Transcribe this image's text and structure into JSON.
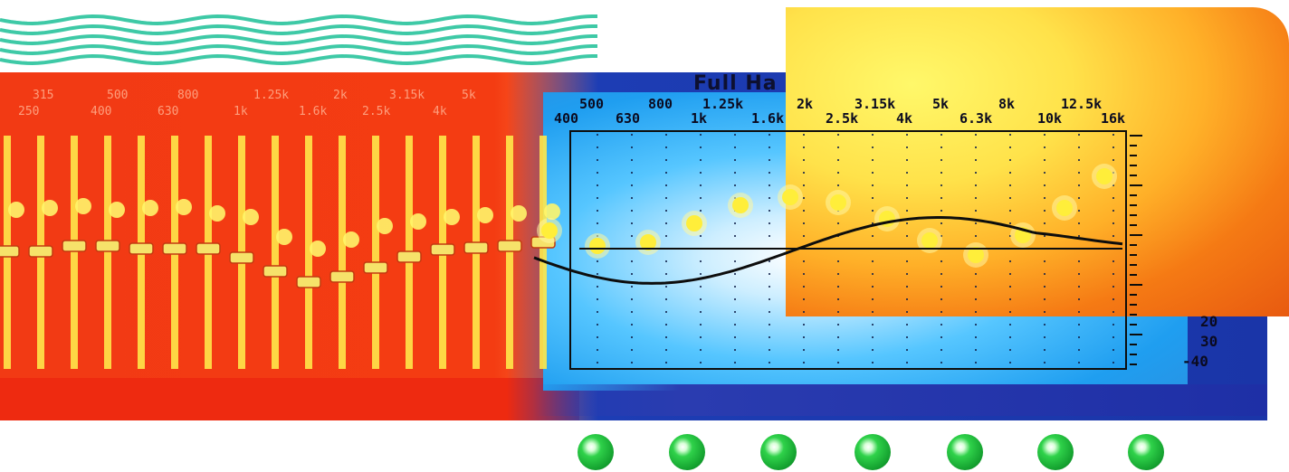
{
  "display": {
    "title": "Full Ha",
    "freq_top": [
      "500",
      "800",
      "1.25k",
      "2k",
      "3.15k",
      "5k",
      "8k",
      "12.5k"
    ],
    "freq_bottom": [
      "400",
      "630",
      "1k",
      "1.6k",
      "2.5k",
      "4k",
      "6.3k",
      "10k",
      "16k"
    ],
    "db_labels": [
      "20",
      "30",
      "-40"
    ]
  },
  "red_panel": {
    "labels_top": [
      "315",
      "500",
      "800",
      "1.25k",
      "2k",
      "3.15k",
      "5k"
    ],
    "labels_bottom": [
      "250",
      "400",
      "630",
      "1k",
      "1.6k",
      "2.5k",
      "4k"
    ]
  },
  "knob_count": 7,
  "colors": {
    "red_panel": "#f23a14",
    "slider_yellow": "#ffe84a",
    "display_blue": "#1f9ef0",
    "frame_blue": "#1d3db4",
    "knob_green": "#14a12f",
    "wave_teal": "#3ec9a6",
    "yellow_blob": "#ffb028"
  }
}
